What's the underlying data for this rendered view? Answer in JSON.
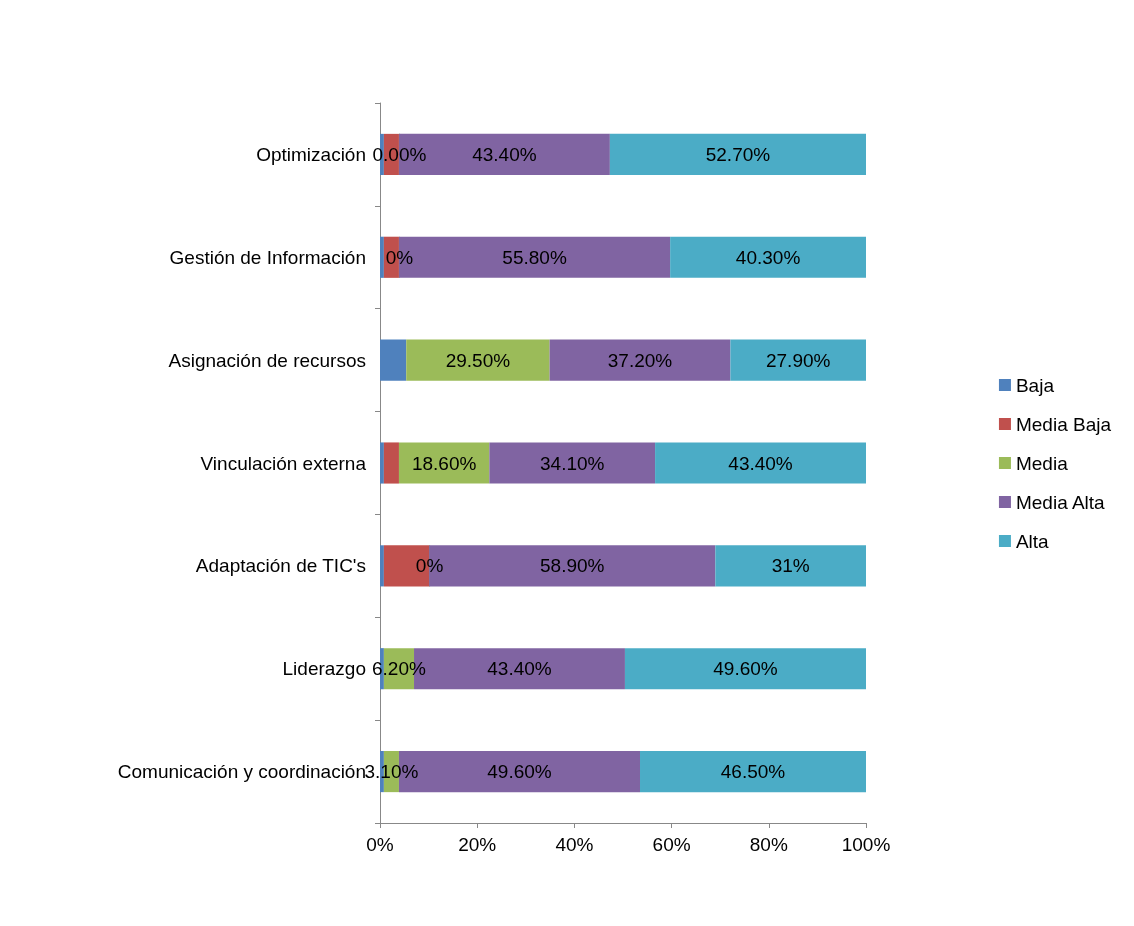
{
  "chart_data": {
    "type": "bar",
    "orientation": "horizontal",
    "stacked": true,
    "categories": [
      "Optimización",
      "Gestión de Información",
      "Asignación de recursos",
      "Vinculación externa",
      "Adaptación de TIC's",
      "Liderazgo",
      "Comunicación y coordinación"
    ],
    "series": [
      {
        "name": "Baja",
        "color": "#4f81bd",
        "values": [
          0.8,
          0.8,
          5.4,
          0.8,
          0.8,
          0.8,
          0.8
        ],
        "value_labels": [
          null,
          null,
          null,
          null,
          null,
          null,
          null
        ]
      },
      {
        "name": "Media Baja",
        "color": "#c0504d",
        "values": [
          3.1,
          3.1,
          0,
          3.1,
          9.3,
          0,
          0
        ],
        "value_labels": [
          null,
          null,
          null,
          null,
          null,
          null,
          null
        ]
      },
      {
        "name": "Media",
        "color": "#9bbb59",
        "values": [
          0,
          0,
          29.5,
          18.6,
          0,
          6.2,
          3.1
        ],
        "value_labels": [
          "0.00%",
          "0%",
          "29.50%",
          "18.60%",
          "0%",
          "6.20%",
          "3.10%"
        ]
      },
      {
        "name": "Media Alta",
        "color": "#8064a2",
        "values": [
          43.4,
          55.8,
          37.2,
          34.1,
          58.9,
          43.4,
          49.6
        ],
        "value_labels": [
          "43.40%",
          "55.80%",
          "37.20%",
          "34.10%",
          "58.90%",
          "43.40%",
          "49.60%"
        ]
      },
      {
        "name": "Alta",
        "color": "#4bacc6",
        "values": [
          52.7,
          40.3,
          27.9,
          43.4,
          31,
          49.6,
          46.5
        ],
        "value_labels": [
          "52.70%",
          "40.30%",
          "27.90%",
          "43.40%",
          "31%",
          "49.60%",
          "46.50%"
        ]
      }
    ],
    "xlim": [
      0,
      100
    ],
    "xticks": [
      {
        "value": 0,
        "label": "0%"
      },
      {
        "value": 20,
        "label": "20%"
      },
      {
        "value": 40,
        "label": "40%"
      },
      {
        "value": 60,
        "label": "60%"
      },
      {
        "value": 80,
        "label": "80%"
      },
      {
        "value": 100,
        "label": "100%"
      }
    ],
    "grid": false,
    "legend": "right"
  }
}
